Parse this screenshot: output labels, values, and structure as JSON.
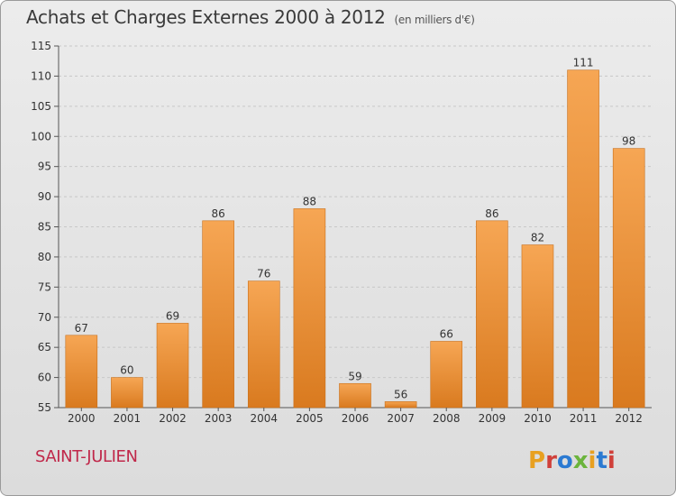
{
  "title": "Achats et Charges Externes 2000 à 2012",
  "unit": "(en milliers d'€)",
  "commune": "SAINT-JULIEN",
  "brand": "Proxiti",
  "colors": {
    "bar_light": "#f6a654",
    "bar_dark": "#d97a1f",
    "commune_text": "#c0284a",
    "brand_letters": [
      "#e8a020",
      "#d0403a",
      "#2b7ad2",
      "#6bb43c",
      "#e8a020",
      "#2b7ad2",
      "#d0403a"
    ]
  },
  "chart_data": {
    "type": "bar",
    "categories": [
      "2000",
      "2001",
      "2002",
      "2003",
      "2004",
      "2005",
      "2006",
      "2007",
      "2008",
      "2009",
      "2010",
      "2011",
      "2012"
    ],
    "values": [
      67,
      60,
      69,
      86,
      76,
      88,
      59,
      56,
      66,
      86,
      82,
      111,
      98
    ],
    "ylim": [
      55,
      115
    ],
    "yticks": [
      55,
      60,
      65,
      70,
      75,
      80,
      85,
      90,
      95,
      100,
      105,
      110,
      115
    ],
    "grid": true,
    "legend": "none"
  }
}
